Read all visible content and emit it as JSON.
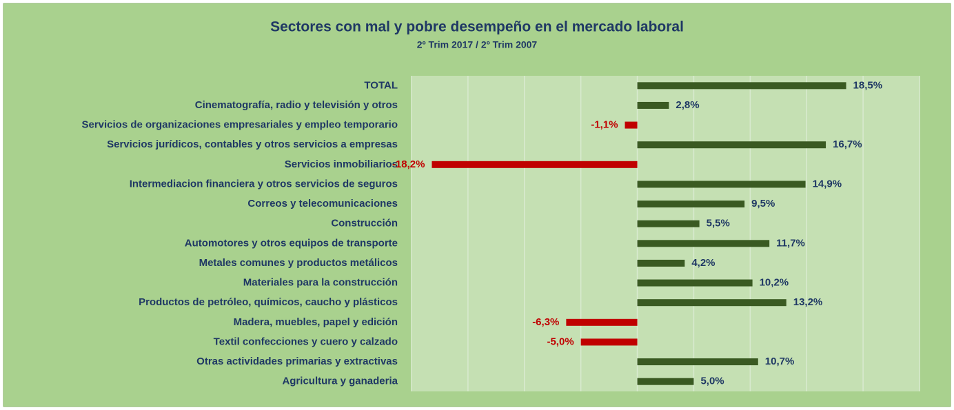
{
  "chart_data": {
    "type": "hbar",
    "title": "Sectores con mal y pobre desempeño en el mercado laboral",
    "subtitle": "2º Trim 2017 / 2º Trim 2007",
    "categories": [
      "TOTAL",
      "Cinematografía, radio y televisión y otros",
      "Servicios de organizaciones empresariales y empleo temporario",
      "Servicios jurídicos, contables y otros servicios a empresas",
      "Servicios inmobiliarios",
      "Intermediacion financiera y otros servicios de seguros",
      "Correos y telecomunicaciones",
      "Construcción",
      "Automotores y otros equipos de transporte",
      "Metales comunes y productos metálicos",
      "Materiales para la construcción",
      "Productos de petróleo, químicos, caucho y plásticos",
      "Madera, muebles, papel y edición",
      "Textil confecciones y cuero y calzado",
      "Otras actividades primarias y extractivas",
      "Agricultura y ganaderia"
    ],
    "values": [
      18.5,
      2.8,
      -1.1,
      16.7,
      -18.2,
      14.9,
      9.5,
      5.5,
      11.7,
      4.2,
      10.2,
      13.2,
      -6.3,
      -5.0,
      10.7,
      5.0
    ],
    "value_labels": [
      "18,5%",
      "2,8%",
      "-1,1%",
      "16,7%",
      "-18,2%",
      "14,9%",
      "9,5%",
      "5,5%",
      "11,7%",
      "4,2%",
      "10,2%",
      "13,2%",
      "-6,3%",
      "-5,0%",
      "10,7%",
      "5,0%"
    ],
    "positive_color": "#3a5a22",
    "negative_color": "#c00000",
    "xlim": [
      -20,
      25
    ],
    "xticks": [
      -20,
      -15,
      -10,
      -5,
      0,
      5,
      10,
      15,
      20,
      25
    ],
    "grid": true
  }
}
